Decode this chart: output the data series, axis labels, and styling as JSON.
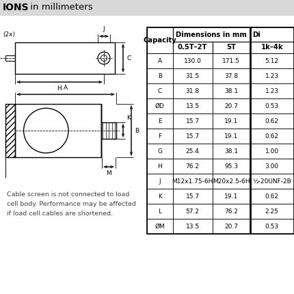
{
  "title_bold": "IONS",
  "title_regular": " in millimeters",
  "rows": [
    [
      "A",
      "130.0",
      "171.5",
      "5.12"
    ],
    [
      "B",
      "31.5",
      "37.8",
      "1.23"
    ],
    [
      "C",
      "31.8",
      "38.1",
      "1.23"
    ],
    [
      "ØD",
      "13.5",
      "20.7",
      "0.53"
    ],
    [
      "E",
      "15.7",
      "19.1",
      "0.62"
    ],
    [
      "F",
      "15.7",
      "19.1",
      "0.62"
    ],
    [
      "G",
      "25.4",
      "38.1",
      "1.00"
    ],
    [
      "H",
      "76.2",
      "95.3",
      "3.00"
    ],
    [
      "J",
      "M12x1.75-6H",
      "M20x2.5-6H",
      "½-20UNF-2B"
    ],
    [
      "K",
      "15.7",
      "19.1",
      "0.62"
    ],
    [
      "L",
      "57.2",
      "76.2",
      "2.25"
    ],
    [
      "ØM",
      "13.5",
      "20.7",
      "0.53"
    ]
  ],
  "footnote": "Cable screen is not connected to load\ncell body. Performance may be affected\nif load cell cables are shortened."
}
